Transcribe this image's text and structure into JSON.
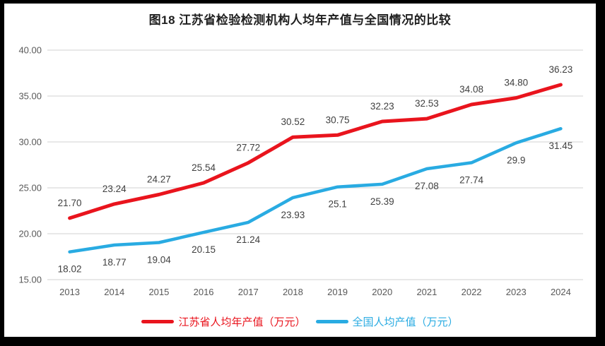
{
  "title": "图18  江苏省检验检测机构人均年产值与全国情况的比较",
  "colors": {
    "jiangsu_red": "#e9141d",
    "national_blue": "#29abe2",
    "gridline": "#d9d9d9",
    "tick_text": "#595959",
    "data_label_text": "#404040",
    "background": "#ffffff",
    "frame": "#000000"
  },
  "chart_data": {
    "type": "line",
    "title": "图18  江苏省检验检测机构人均年产值与全国情况的比较",
    "categories": [
      "2013",
      "2014",
      "2015",
      "2016",
      "2017",
      "2018",
      "2019",
      "2020",
      "2021",
      "2022",
      "2023",
      "2024"
    ],
    "series": [
      {
        "name": "江苏省人均年产值（万元）",
        "color": "#e9141d",
        "values": [
          21.7,
          23.24,
          24.27,
          25.54,
          27.72,
          30.52,
          30.75,
          32.23,
          32.53,
          34.08,
          34.8,
          36.23
        ],
        "labels": [
          "21.70",
          "23.24",
          "24.27",
          "25.54",
          "27.72",
          "30.52",
          "30.75",
          "32.23",
          "32.53",
          "34.08",
          "34.80",
          "36.23"
        ],
        "label_side": "above"
      },
      {
        "name": "全国人均产值（万元）",
        "color": "#29abe2",
        "values": [
          18.02,
          18.77,
          19.04,
          20.15,
          21.24,
          23.93,
          25.1,
          25.39,
          27.08,
          27.74,
          29.9,
          31.45
        ],
        "labels": [
          "18.02",
          "18.77",
          "19.04",
          "20.15",
          "21.24",
          "23.93",
          "25.1",
          "25.39",
          "27.08",
          "27.74",
          "29.9",
          "31.45"
        ],
        "label_side": "below"
      }
    ],
    "ylim": [
      15,
      40
    ],
    "yticks": [
      "40.00",
      "35.00",
      "30.00",
      "25.00",
      "20.00",
      "15.00"
    ],
    "xlabel": "",
    "ylabel": "",
    "grid": true,
    "legend_position": "bottom"
  }
}
